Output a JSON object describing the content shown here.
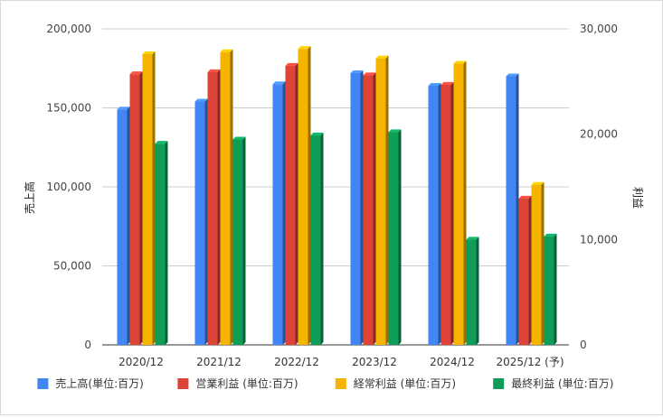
{
  "chart_data": {
    "type": "bar",
    "title": "",
    "categories": [
      "2020/12",
      "2021/12",
      "2022/12",
      "2023/12",
      "2024/12",
      "2025/12 (予)"
    ],
    "left_axis": {
      "label": "売上高",
      "range": [
        0,
        200000
      ],
      "ticks": [
        "0",
        "50,000",
        "100,000",
        "150,000",
        "200,000"
      ]
    },
    "right_axis": {
      "label": "利益",
      "range": [
        0,
        30000
      ],
      "ticks": [
        "0",
        "10,000",
        "20,000",
        "30,000"
      ]
    },
    "grid": true,
    "legend_position": "bottom",
    "series": [
      {
        "name": "売上高(単位:百万)",
        "axis": "left",
        "color": "#4285f4",
        "values": [
          149000,
          154000,
          165000,
          172000,
          164000,
          170000
        ]
      },
      {
        "name": "営業利益 (単位:百万)",
        "axis": "right",
        "color": "#db4437",
        "values": [
          25700,
          25900,
          26500,
          25600,
          24700,
          13900
        ]
      },
      {
        "name": "経常利益 (単位:百万)",
        "axis": "right",
        "color": "#f4b400",
        "values": [
          27600,
          27800,
          28100,
          27200,
          26700,
          15200
        ]
      },
      {
        "name": "最終利益 (単位:百万)",
        "axis": "right",
        "color": "#0f9d58",
        "values": [
          19100,
          19500,
          19900,
          20200,
          10000,
          10300
        ]
      }
    ]
  }
}
